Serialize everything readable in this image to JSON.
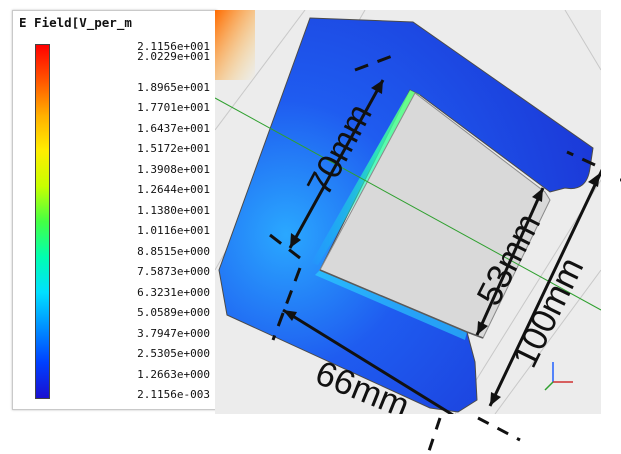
{
  "legend": {
    "title": "E Field[V_per_m",
    "ticks": [
      "2.1156e+001",
      "2.0229e+001",
      "1.8965e+001",
      "1.7701e+001",
      "1.6437e+001",
      "1.5172e+001",
      "1.3908e+001",
      "1.2644e+001",
      "1.1380e+001",
      "1.0116e+001",
      "8.8515e+000",
      "7.5873e+000",
      "6.3231e+000",
      "5.0589e+000",
      "3.7947e+000",
      "2.5305e+000",
      "1.2663e+000",
      "2.1156e-003"
    ]
  },
  "dimensions": {
    "d70": "70mm",
    "d53": "53mm",
    "d100": "100mm",
    "d66": "66mm"
  },
  "colors": {
    "field_low": "#1a3cf0",
    "field_mid": "#00e0ff",
    "field_high": "#44ff66",
    "background": "#ececec"
  }
}
